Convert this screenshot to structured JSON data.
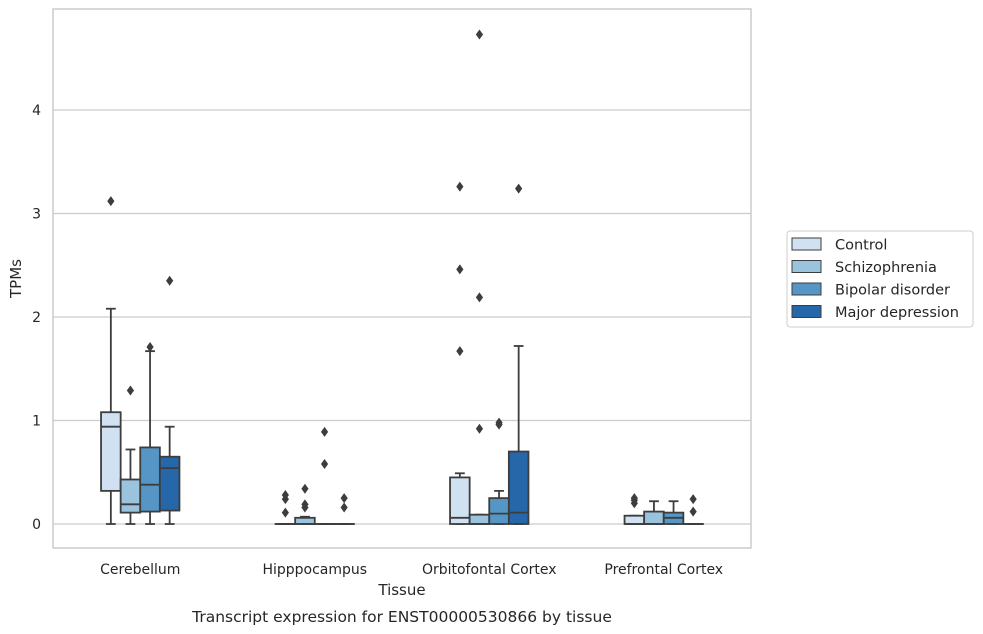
{
  "chart_data": {
    "type": "box",
    "caption": "Transcript expression for ENST00000530866 by tissue",
    "xlabel": "Tissue",
    "ylabel": "TPMs",
    "ylim": [
      -0.23,
      4.98
    ],
    "yticks": [
      0,
      1,
      2,
      3,
      4
    ],
    "grid": "horizontal",
    "legend_position": "right",
    "categories": [
      "Cerebellum",
      "Hipppocampus",
      "Orbitofontal Cortex",
      "Prefrontal Cortex"
    ],
    "series": [
      {
        "name": "Control",
        "color": "#d0e1f2",
        "boxes": [
          {
            "min": 0.0,
            "q1": 0.32,
            "median": 0.94,
            "q3": 1.08,
            "max": 2.08,
            "outliers": [
              3.12
            ]
          },
          {
            "min": 0.0,
            "q1": 0.0,
            "median": 0.0,
            "q3": 0.0,
            "max": 0.0,
            "outliers": [
              0.11,
              0.24,
              0.28
            ]
          },
          {
            "min": 0.0,
            "q1": 0.0,
            "median": 0.06,
            "q3": 0.45,
            "max": 0.49,
            "outliers": [
              1.67,
              2.46,
              3.26
            ]
          },
          {
            "min": 0.0,
            "q1": 0.0,
            "median": 0.0,
            "q3": 0.08,
            "max": 0.08,
            "outliers": [
              0.2,
              0.23,
              0.25
            ]
          }
        ]
      },
      {
        "name": "Schizophrenia",
        "color": "#9ac3de",
        "boxes": [
          {
            "min": 0.0,
            "q1": 0.11,
            "median": 0.19,
            "q3": 0.43,
            "max": 0.72,
            "outliers": [
              1.29
            ]
          },
          {
            "min": 0.0,
            "q1": 0.0,
            "median": 0.0,
            "q3": 0.06,
            "max": 0.07,
            "outliers": [
              0.16,
              0.19,
              0.34
            ]
          },
          {
            "min": 0.0,
            "q1": 0.0,
            "median": 0.0,
            "q3": 0.09,
            "max": 0.09,
            "outliers": [
              0.92,
              2.19,
              4.73
            ]
          },
          {
            "min": 0.0,
            "q1": 0.0,
            "median": 0.0,
            "q3": 0.12,
            "max": 0.22,
            "outliers": []
          }
        ]
      },
      {
        "name": "Bipolar disorder",
        "color": "#5696c7",
        "boxes": [
          {
            "min": 0.0,
            "q1": 0.12,
            "median": 0.38,
            "q3": 0.74,
            "max": 1.67,
            "outliers": [
              1.71
            ]
          },
          {
            "min": 0.0,
            "q1": 0.0,
            "median": 0.0,
            "q3": 0.0,
            "max": 0.0,
            "outliers": [
              0.58,
              0.89
            ]
          },
          {
            "min": 0.0,
            "q1": 0.0,
            "median": 0.1,
            "q3": 0.25,
            "max": 0.32,
            "outliers": [
              0.96,
              0.98
            ]
          },
          {
            "min": 0.0,
            "q1": 0.0,
            "median": 0.06,
            "q3": 0.11,
            "max": 0.22,
            "outliers": []
          }
        ]
      },
      {
        "name": "Major depression",
        "color": "#2567a9",
        "boxes": [
          {
            "min": 0.0,
            "q1": 0.13,
            "median": 0.54,
            "q3": 0.65,
            "max": 0.94,
            "outliers": [
              2.35
            ]
          },
          {
            "min": 0.0,
            "q1": 0.0,
            "median": 0.0,
            "q3": 0.0,
            "max": 0.0,
            "outliers": [
              0.16,
              0.25
            ]
          },
          {
            "min": 0.0,
            "q1": 0.0,
            "median": 0.11,
            "q3": 0.7,
            "max": 1.72,
            "outliers": [
              3.24
            ]
          },
          {
            "min": 0.0,
            "q1": 0.0,
            "median": 0.0,
            "q3": 0.0,
            "max": 0.0,
            "outliers": [
              0.12,
              0.24
            ]
          }
        ]
      }
    ]
  }
}
